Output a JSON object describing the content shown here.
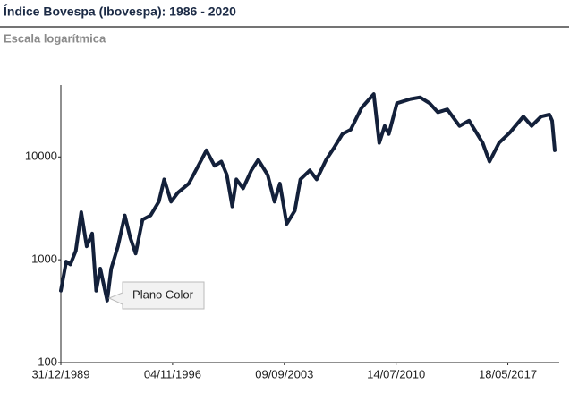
{
  "chart_data": {
    "type": "line",
    "title": "Índice Bovespa (Ibovespa): 1986 - 2020",
    "subtitle": "Escala logarítmica",
    "annotation": "Plano Color",
    "log_scale": true,
    "grid": false,
    "x": [
      "1990-01",
      "1990-05",
      "1990-08",
      "1990-12",
      "1991-04",
      "1991-08",
      "1991-12",
      "1992-03",
      "1992-06",
      "1992-11",
      "1993-02",
      "1993-07",
      "1993-12",
      "1994-04",
      "1994-08",
      "1995-01",
      "1995-07",
      "1996-01",
      "1996-05",
      "1996-10",
      "1997-03",
      "1997-11",
      "1998-06",
      "1998-12",
      "1999-06",
      "1999-11",
      "2000-03",
      "2000-07",
      "2000-10",
      "2001-03",
      "2001-09",
      "2002-02",
      "2002-09",
      "2003-02",
      "2003-06",
      "2003-11",
      "2004-05",
      "2004-09",
      "2005-04",
      "2005-09",
      "2006-04",
      "2006-10",
      "2007-04",
      "2007-10",
      "2008-06",
      "2009-03",
      "2009-07",
      "2009-11",
      "2010-02",
      "2010-08",
      "2011-06",
      "2012-01",
      "2012-08",
      "2013-02",
      "2013-09",
      "2014-06",
      "2015-01",
      "2015-11",
      "2016-04",
      "2016-11",
      "2017-07",
      "2018-05",
      "2018-11",
      "2019-06",
      "2019-12",
      "2020-02",
      "2020-04"
    ],
    "series": [
      {
        "name": "Ibovespa",
        "color": "#13203a",
        "values": [
          500,
          960,
          900,
          1220,
          2900,
          1350,
          1800,
          500,
          820,
          400,
          820,
          1350,
          2700,
          1650,
          1150,
          2450,
          2700,
          3670,
          6050,
          3670,
          4480,
          5500,
          8200,
          11600,
          8200,
          9000,
          6700,
          3300,
          6050,
          4950,
          7400,
          9400,
          6700,
          3670,
          5500,
          2230,
          3000,
          6050,
          7400,
          6050,
          9400,
          12400,
          16700,
          18400,
          30000,
          40800,
          13700,
          20000,
          16700,
          33300,
          36600,
          38000,
          33300,
          27200,
          29000,
          20000,
          22500,
          13700,
          9000,
          13700,
          17200,
          24700,
          20000,
          24700,
          25800,
          22500,
          11600
        ]
      }
    ],
    "xlim": [
      "1989-12-31",
      "2020-05-12"
    ],
    "xticks": [
      {
        "value": "1989-12-31",
        "label": "31/12/1989"
      },
      {
        "value": "1996-11-04",
        "label": "04/11/1996"
      },
      {
        "value": "2003-09-09",
        "label": "09/09/2003"
      },
      {
        "value": "2010-07-14",
        "label": "14/07/2010"
      },
      {
        "value": "2017-05-18",
        "label": "18/05/2017"
      }
    ],
    "ylim": [
      100,
      50000
    ],
    "yticks": [
      100,
      1000,
      10000
    ]
  }
}
